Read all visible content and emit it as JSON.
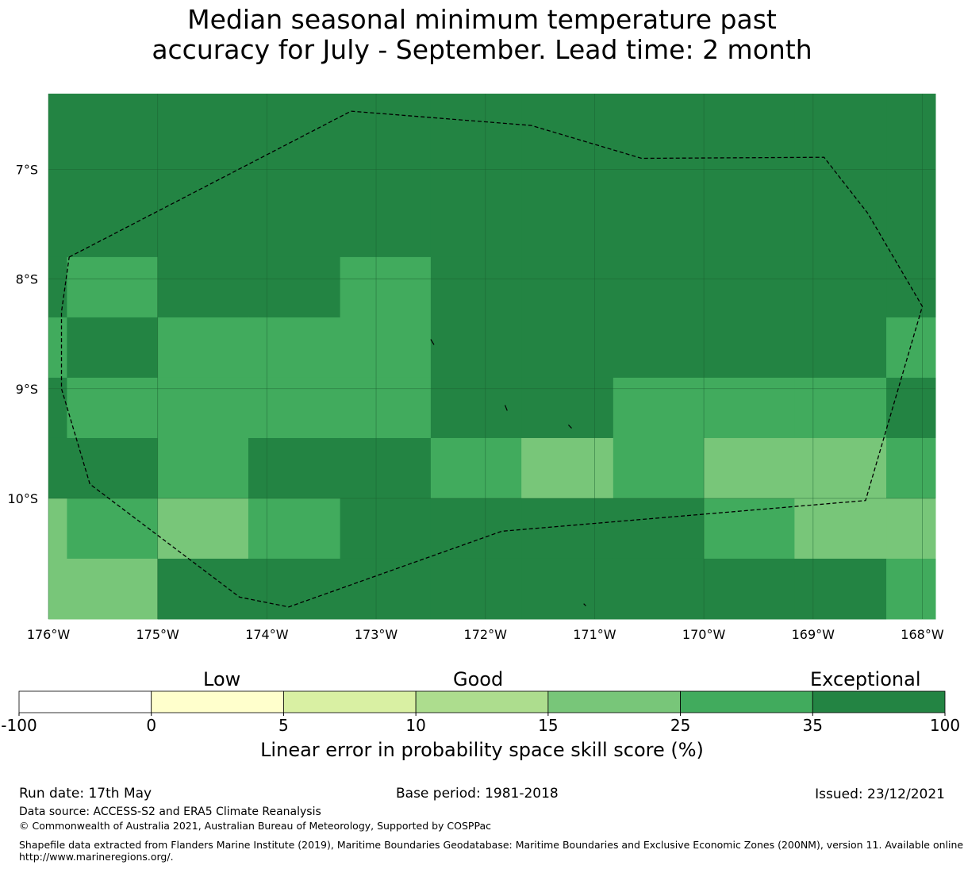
{
  "title_lines": [
    "Median seasonal minimum temperature past",
    "accuracy for July - September. Lead time: 2 month"
  ],
  "map": {
    "lon_range": [
      -176,
      -167.88
    ],
    "lat_range": [
      -11.1,
      -6.31
    ],
    "lon_ticks": [
      "176°W",
      "175°W",
      "174°W",
      "173°W",
      "172°W",
      "171°W",
      "170°W",
      "169°W",
      "168°W"
    ],
    "lat_ticks": [
      "7°S",
      "8°S",
      "9°S",
      "10°S"
    ],
    "colors": {
      "c25": "#78c679",
      "c35": "#41ab5d",
      "c100": "#238443",
      "grid": "#1b5e30",
      "eez": "#000000"
    },
    "grid_cells": {
      "lon_edges": [
        -176,
        -175.83,
        -175.0,
        -174.17,
        -173.33,
        -172.5,
        -171.67,
        -170.83,
        -170.0,
        -169.17,
        -168.33,
        -167.88
      ],
      "lat_edges": [
        -6.31,
        -7.8,
        -8.35,
        -8.9,
        -9.45,
        -10.0,
        -10.55,
        -11.1
      ],
      "rows": [
        [
          "c100",
          "c100",
          "c100",
          "c100",
          "c100",
          "c100",
          "c100",
          "c100",
          "c100",
          "c100",
          "c100"
        ],
        [
          "c100",
          "c35",
          "c100",
          "c100",
          "c35",
          "c100",
          "c100",
          "c100",
          "c100",
          "c100",
          "c100"
        ],
        [
          "c35",
          "c100",
          "c35",
          "c35",
          "c35",
          "c100",
          "c100",
          "c100",
          "c100",
          "c100",
          "c35"
        ],
        [
          "c100",
          "c35",
          "c35",
          "c35",
          "c35",
          "c100",
          "c100",
          "c35",
          "c35",
          "c35",
          "c100"
        ],
        [
          "c100",
          "c100",
          "c35",
          "c100",
          "c100",
          "c35",
          "c25",
          "c35",
          "c25",
          "c25",
          "c35"
        ],
        [
          "c25",
          "c35",
          "c25",
          "c35",
          "c100",
          "c100",
          "c100",
          "c100",
          "c35",
          "c25",
          "c25"
        ],
        [
          "c25",
          "c25",
          "c100",
          "c100",
          "c100",
          "c100",
          "c100",
          "c100",
          "c100",
          "c100",
          "c35"
        ]
      ]
    },
    "eez_boundary": [
      [
        -175.81,
        -7.8
      ],
      [
        -173.23,
        -6.47
      ],
      [
        -171.58,
        -6.6
      ],
      [
        -170.57,
        -6.9
      ],
      [
        -168.9,
        -6.89
      ],
      [
        -168.5,
        -7.4
      ],
      [
        -168.0,
        -8.25
      ],
      [
        -168.52,
        -10.02
      ],
      [
        -171.85,
        -10.3
      ],
      [
        -173.8,
        -10.99
      ],
      [
        -174.25,
        -10.9
      ],
      [
        -175.62,
        -9.87
      ],
      [
        -175.88,
        -9.0
      ],
      [
        -175.88,
        -8.3
      ],
      [
        -175.81,
        -7.8
      ]
    ],
    "islets": [
      [
        [
          -172.5,
          -8.55
        ],
        [
          -172.47,
          -8.6
        ]
      ],
      [
        [
          -171.82,
          -9.15
        ],
        [
          -171.8,
          -9.2
        ]
      ],
      [
        [
          -171.24,
          -9.33
        ],
        [
          -171.21,
          -9.36
        ]
      ],
      [
        [
          -171.1,
          -10.96
        ],
        [
          -171.08,
          -10.98
        ]
      ]
    ]
  },
  "colorbar": {
    "categories": [
      {
        "label": "Low",
        "center_value": "2.5"
      },
      {
        "label": "Good",
        "center_value": "12.5"
      },
      {
        "label": "Exceptional",
        "center_value": "67.5"
      }
    ],
    "bins": [
      {
        "from": "-100",
        "to": "0",
        "color": "#ffffff"
      },
      {
        "from": "0",
        "to": "5",
        "color": "#ffffcc"
      },
      {
        "from": "5",
        "to": "10",
        "color": "#d9f0a3"
      },
      {
        "from": "10",
        "to": "15",
        "color": "#addd8e"
      },
      {
        "from": "15",
        "to": "25",
        "color": "#78c679"
      },
      {
        "from": "25",
        "to": "35",
        "color": "#41ab5d"
      },
      {
        "from": "35",
        "to": "100",
        "color": "#238443"
      }
    ],
    "tick_labels": [
      "-100",
      "0",
      "5",
      "10",
      "15",
      "25",
      "35",
      "100"
    ],
    "title": "Linear error in probability space skill score (%)"
  },
  "footer": {
    "run_date": "Run date: 17th May",
    "base_period": "Base period: 1981-2018",
    "issued": "Issued: 23/12/2021",
    "data_source": "Data source: ACCESS-S2 and ERA5 Climate Reanalysis",
    "copyright": "© Commonwealth of Australia 2021, Australian Bureau of Meteorology, Supported by COSPPac",
    "shapefile_line1": "Shapefile data extracted from Flanders Marine Institute (2019), Maritime Boundaries Geodatabase: Maritime Boundaries and Exclusive Economic Zones (200NM), version 11. Available online at",
    "shapefile_line2": "http://www.marineregions.org/."
  }
}
